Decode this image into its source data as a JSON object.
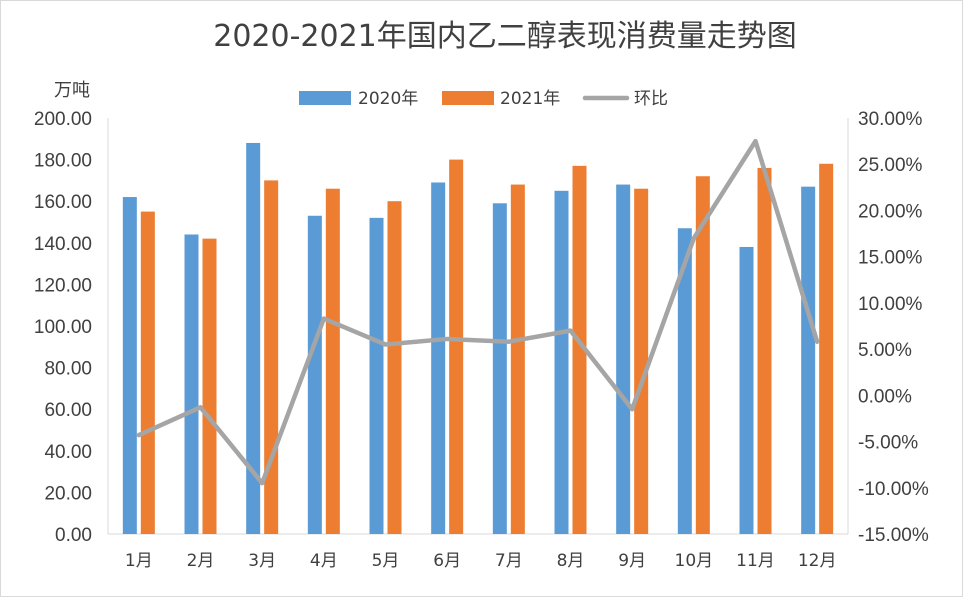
{
  "chart_data": {
    "type": "bar",
    "title": "2020-2021年国内乙二醇表现消费量走势图",
    "ylabel": "万吨",
    "categories": [
      "1月",
      "2月",
      "3月",
      "4月",
      "5月",
      "6月",
      "7月",
      "8月",
      "9月",
      "10月",
      "11月",
      "12月"
    ],
    "series": [
      {
        "name": "2020年",
        "type": "bar",
        "axis": "left",
        "color": "#5B9BD5",
        "values": [
          162,
          144,
          188,
          153,
          152,
          169,
          159,
          165,
          168,
          147,
          138,
          167
        ]
      },
      {
        "name": "2021年",
        "type": "bar",
        "axis": "left",
        "color": "#ED7D31",
        "values": [
          155,
          142,
          170,
          166,
          160,
          180,
          168,
          177,
          166,
          172,
          176,
          178
        ]
      },
      {
        "name": "环比",
        "type": "line",
        "axis": "right",
        "color": "#A5A5A5",
        "values": [
          -4.3,
          -1.3,
          -9.5,
          8.3,
          5.5,
          6.1,
          5.8,
          7.0,
          -1.5,
          17.0,
          27.5,
          5.8
        ]
      }
    ],
    "ylim": [
      0,
      200
    ],
    "yticks": [
      "0.00",
      "20.00",
      "40.00",
      "60.00",
      "80.00",
      "100.00",
      "120.00",
      "140.00",
      "160.00",
      "180.00",
      "200.00"
    ],
    "y2lim": [
      -15,
      30
    ],
    "y2ticks": [
      "-15.00%",
      "-10.00%",
      "-5.00%",
      "0.00%",
      "5.00%",
      "10.00%",
      "15.00%",
      "20.00%",
      "25.00%",
      "30.00%"
    ],
    "legend_position": "top-center",
    "grid": false
  }
}
